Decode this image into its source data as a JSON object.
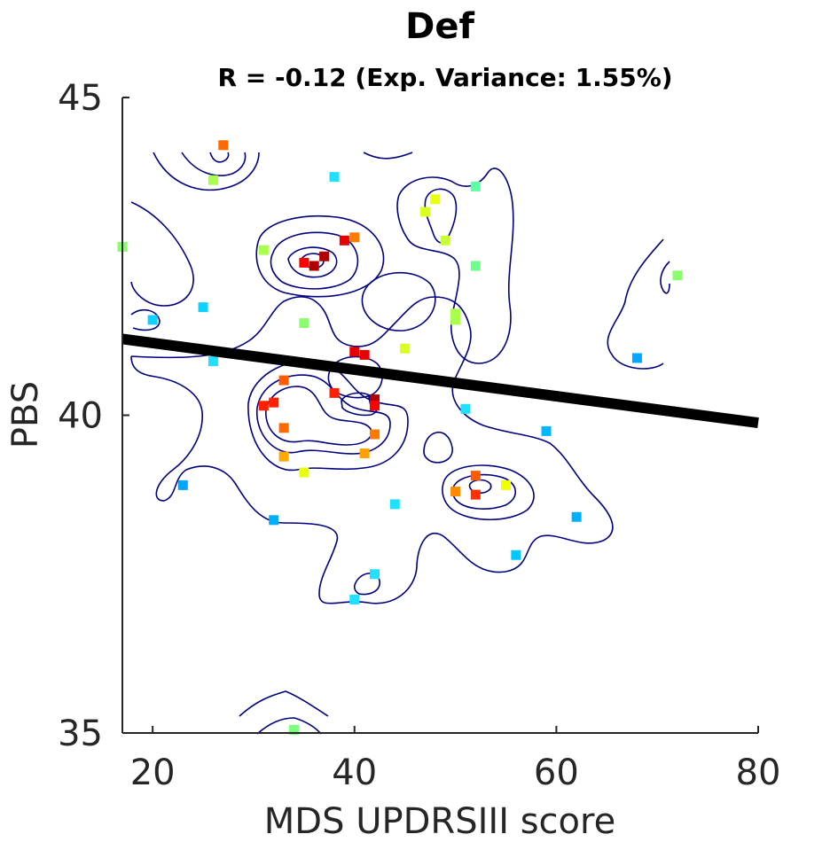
{
  "chart_data": {
    "type": "scatter",
    "title": "Def",
    "subtitle": "R = -0.12 (Exp. Variance: 1.55%)",
    "xlabel": "MDS UPDRSIII score",
    "ylabel": "PBS",
    "xlim": [
      17,
      80
    ],
    "ylim": [
      35,
      45
    ],
    "xticks": [
      20,
      40,
      60,
      80
    ],
    "yticks": [
      35,
      40,
      45
    ],
    "grid": false,
    "legend": "none",
    "fit_line": {
      "x": [
        17,
        80
      ],
      "y": [
        41.2,
        39.88
      ],
      "color": "#000000"
    },
    "points": [
      {
        "x": 27,
        "y": 44.25,
        "color": "#ff6a00"
      },
      {
        "x": 26,
        "y": 43.7,
        "color": "#aaff4d"
      },
      {
        "x": 38,
        "y": 43.75,
        "color": "#1fe0ff"
      },
      {
        "x": 17,
        "y": 42.65,
        "color": "#8aff6d"
      },
      {
        "x": 31,
        "y": 42.6,
        "color": "#aaff4d"
      },
      {
        "x": 35,
        "y": 42.4,
        "color": "#ff0000"
      },
      {
        "x": 36,
        "y": 42.35,
        "color": "#b00000"
      },
      {
        "x": 37,
        "y": 42.5,
        "color": "#b00000"
      },
      {
        "x": 39,
        "y": 42.75,
        "color": "#e60000"
      },
      {
        "x": 40,
        "y": 42.8,
        "color": "#ff7a00"
      },
      {
        "x": 47,
        "y": 43.2,
        "color": "#d8ff1f"
      },
      {
        "x": 48,
        "y": 43.4,
        "color": "#e8ff0f"
      },
      {
        "x": 49,
        "y": 42.75,
        "color": "#c8ff2f"
      },
      {
        "x": 52,
        "y": 43.6,
        "color": "#5dffa2"
      },
      {
        "x": 52,
        "y": 42.35,
        "color": "#6dff8a"
      },
      {
        "x": 72,
        "y": 42.2,
        "color": "#8aff6d"
      },
      {
        "x": 20,
        "y": 41.5,
        "color": "#10d0ff"
      },
      {
        "x": 25,
        "y": 41.7,
        "color": "#10d0ff"
      },
      {
        "x": 35,
        "y": 41.45,
        "color": "#8aff6d"
      },
      {
        "x": 50,
        "y": 41.5,
        "color": "#aaff4d"
      },
      {
        "x": 50,
        "y": 41.6,
        "color": "#aaff4d"
      },
      {
        "x": 26,
        "y": 40.85,
        "color": "#1fe0ff"
      },
      {
        "x": 40,
        "y": 41.0,
        "color": "#e60000"
      },
      {
        "x": 41,
        "y": 40.95,
        "color": "#e60000"
      },
      {
        "x": 45,
        "y": 41.05,
        "color": "#d8ff1f"
      },
      {
        "x": 68,
        "y": 40.9,
        "color": "#00a8ff"
      },
      {
        "x": 33,
        "y": 40.55,
        "color": "#ff5a00"
      },
      {
        "x": 32,
        "y": 40.2,
        "color": "#ff2000"
      },
      {
        "x": 31,
        "y": 40.15,
        "color": "#ff2000"
      },
      {
        "x": 38,
        "y": 40.35,
        "color": "#ff2000"
      },
      {
        "x": 42,
        "y": 40.25,
        "color": "#b00000"
      },
      {
        "x": 42,
        "y": 40.15,
        "color": "#ff0000"
      },
      {
        "x": 51,
        "y": 40.1,
        "color": "#1fe0ff"
      },
      {
        "x": 33,
        "y": 39.8,
        "color": "#ff6a00"
      },
      {
        "x": 42,
        "y": 39.7,
        "color": "#ff7a00"
      },
      {
        "x": 59,
        "y": 39.75,
        "color": "#00b8ff"
      },
      {
        "x": 33,
        "y": 39.35,
        "color": "#ffa800"
      },
      {
        "x": 41,
        "y": 39.4,
        "color": "#ffa000"
      },
      {
        "x": 35,
        "y": 39.1,
        "color": "#e8ff0f"
      },
      {
        "x": 52,
        "y": 39.05,
        "color": "#ff5a00"
      },
      {
        "x": 23,
        "y": 38.9,
        "color": "#00a8ff"
      },
      {
        "x": 50,
        "y": 38.8,
        "color": "#ff8a00"
      },
      {
        "x": 52,
        "y": 38.75,
        "color": "#ff3000"
      },
      {
        "x": 55,
        "y": 38.9,
        "color": "#f0ff00"
      },
      {
        "x": 32,
        "y": 38.35,
        "color": "#00b0ff"
      },
      {
        "x": 44,
        "y": 38.6,
        "color": "#1fe0ff"
      },
      {
        "x": 62,
        "y": 38.4,
        "color": "#00b0ff"
      },
      {
        "x": 56,
        "y": 37.8,
        "color": "#00c8ff"
      },
      {
        "x": 42,
        "y": 37.5,
        "color": "#1fe0ff"
      },
      {
        "x": 40,
        "y": 37.1,
        "color": "#1fe0ff"
      },
      {
        "x": 34,
        "y": 35.05,
        "color": "#7dff7d"
      }
    ]
  }
}
